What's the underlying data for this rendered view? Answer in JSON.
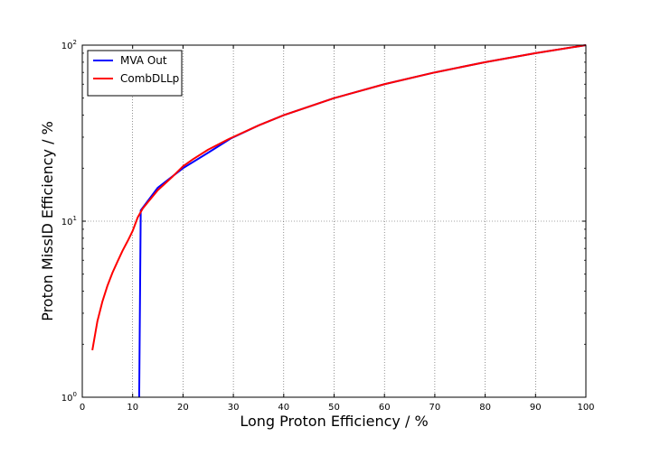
{
  "chart_data": {
    "type": "line",
    "xlabel": "Long Proton Efficiency / %",
    "ylabel": "Proton MissID Efficiency / %",
    "xlim": [
      0,
      100
    ],
    "ylim": [
      1,
      100
    ],
    "yscale": "log",
    "grid": true,
    "legend_position": "top-left",
    "x_ticks": [
      "0",
      "10",
      "20",
      "30",
      "40",
      "50",
      "60",
      "70",
      "80",
      "90",
      "100"
    ],
    "y_ticks": [
      {
        "value": 1,
        "base": "10",
        "exp": "0"
      },
      {
        "value": 10,
        "base": "10",
        "exp": "1"
      },
      {
        "value": 100,
        "base": "10",
        "exp": "2"
      }
    ],
    "series": [
      {
        "name": "MVA Out",
        "color": "#0000ff",
        "x": [
          11.3,
          11.3,
          11.6,
          11.6,
          15,
          20,
          25,
          29.5,
          35,
          40,
          50,
          60,
          70,
          80,
          90,
          100
        ],
        "y": [
          1.0,
          1.0,
          11.0,
          11.5,
          15.5,
          20.0,
          24.5,
          29.5,
          35.0,
          40.0,
          50.0,
          60.0,
          70.0,
          80.0,
          90.0,
          100.0
        ]
      },
      {
        "name": "CombDLLp",
        "color": "#ff0000",
        "x": [
          2,
          3,
          4,
          5,
          6,
          7,
          8,
          9,
          10,
          11,
          12,
          13,
          15,
          18,
          20,
          22,
          25,
          29,
          35,
          40,
          50,
          60,
          70,
          80,
          90,
          100
        ],
        "y": [
          1.85,
          2.7,
          3.5,
          4.3,
          5.1,
          5.9,
          6.8,
          7.7,
          8.8,
          10.5,
          11.8,
          12.8,
          15.0,
          18.0,
          20.5,
          22.5,
          25.5,
          29.2,
          35.0,
          40.0,
          50.0,
          60.0,
          70.0,
          80.0,
          90.0,
          100.0
        ]
      }
    ]
  }
}
